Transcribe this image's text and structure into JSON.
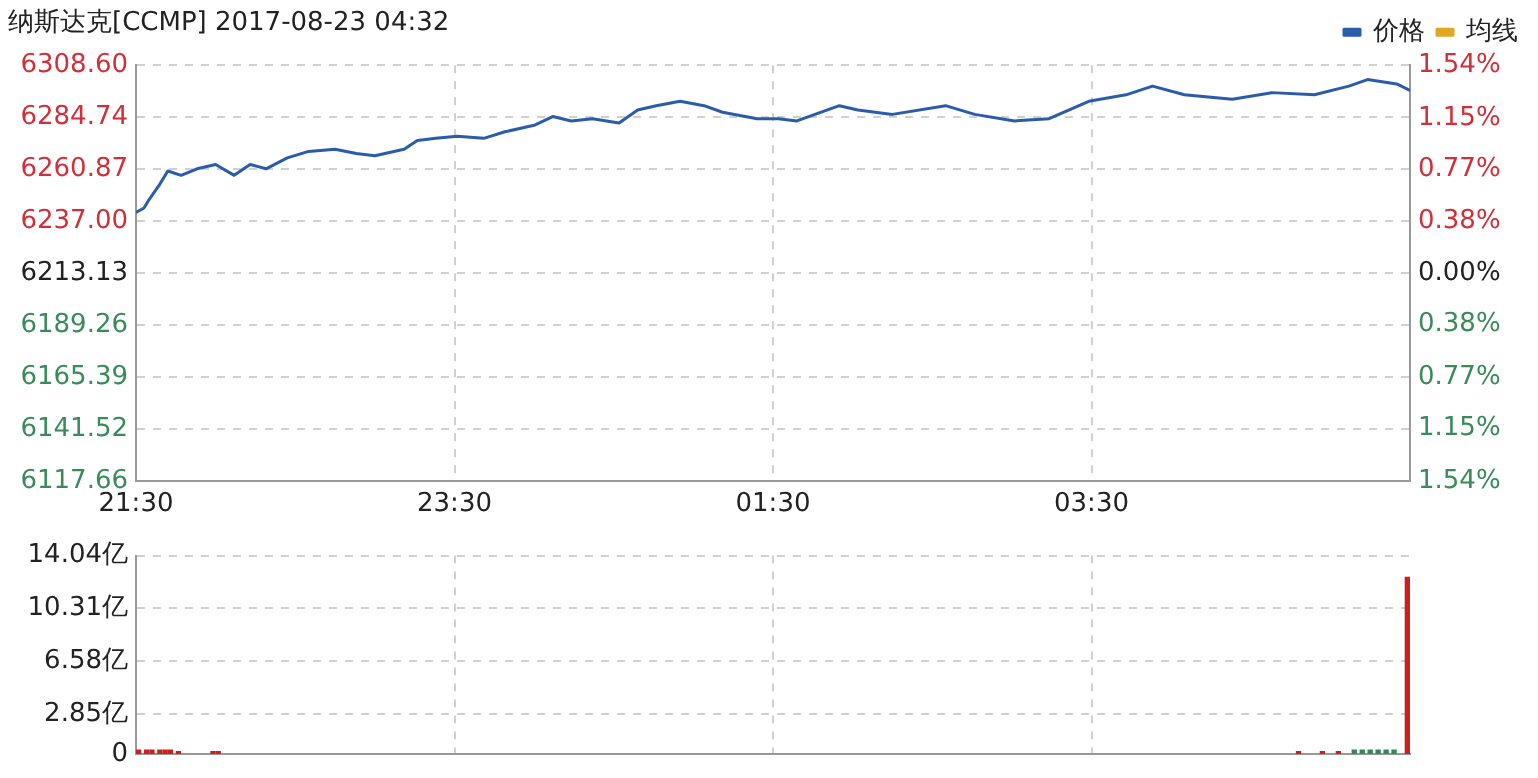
{
  "chart_data": [
    {
      "type": "line",
      "title": "纳斯达克[CCMP] 2017-08-23 04:32",
      "legend": "top right",
      "grid": true,
      "x": [
        "2017-08-22T21:30",
        "2017-08-22T21:33",
        "2017-08-22T21:35",
        "2017-08-22T21:39",
        "2017-08-22T21:42",
        "2017-08-22T21:47",
        "2017-08-22T21:53",
        "2017-08-22T22:00",
        "2017-08-22T22:07",
        "2017-08-22T22:13",
        "2017-08-22T22:19",
        "2017-08-22T22:27",
        "2017-08-22T22:35",
        "2017-08-22T22:45",
        "2017-08-22T22:53",
        "2017-08-22T23:00",
        "2017-08-22T23:11",
        "2017-08-22T23:16",
        "2017-08-22T23:23",
        "2017-08-22T23:31",
        "2017-08-22T23:41",
        "2017-08-22T23:49",
        "2017-08-23T00:00",
        "2017-08-23T00:07",
        "2017-08-23T00:14",
        "2017-08-23T00:22",
        "2017-08-23T00:32",
        "2017-08-23T00:39",
        "2017-08-23T00:46",
        "2017-08-23T00:55",
        "2017-08-23T01:04",
        "2017-08-23T01:11",
        "2017-08-23T01:24",
        "2017-08-23T01:32",
        "2017-08-23T01:39",
        "2017-08-23T01:55",
        "2017-08-23T02:02",
        "2017-08-23T02:15",
        "2017-08-23T02:35",
        "2017-08-23T02:46",
        "2017-08-23T03:01",
        "2017-08-23T03:14",
        "2017-08-23T03:29",
        "2017-08-23T03:43",
        "2017-08-23T03:53",
        "2017-08-23T04:05",
        "2017-08-23T04:23",
        "2017-08-23T04:38",
        "2017-08-23T04:54",
        "2017-08-23T05:07",
        "2017-08-23T05:14",
        "2017-08-23T05:25",
        "2017-08-23T05:30"
      ],
      "series": [
        {
          "name": "价格",
          "color": "#2a5caa",
          "values": [
            6241,
            6243,
            6247,
            6254,
            6260,
            6258,
            6261,
            6263,
            6258,
            6263,
            6261,
            6266,
            6269,
            6270,
            6268,
            6267,
            6270,
            6274,
            6275,
            6276,
            6275,
            6278,
            6281,
            6285,
            6283,
            6284,
            6282,
            6288,
            6290,
            6292,
            6290,
            6287,
            6284,
            6284,
            6283,
            6290,
            6288,
            6286,
            6290,
            6286,
            6283,
            6284,
            6292,
            6295,
            6299,
            6295,
            6293,
            6296,
            6295,
            6299,
            6302,
            6300,
            6297
          ]
        },
        {
          "name": "均线",
          "color": "#e0a820",
          "values": [
            null,
            null,
            null,
            null,
            null,
            null,
            null,
            null,
            null,
            null,
            null,
            null,
            null,
            null,
            null,
            null,
            null,
            null,
            null,
            null,
            null,
            null,
            null,
            null,
            null,
            null,
            null,
            null,
            null,
            null,
            null,
            null,
            null,
            null,
            null,
            null,
            null,
            null,
            null,
            null,
            null,
            null,
            null,
            null,
            null,
            null,
            null,
            null,
            null,
            null,
            null,
            null,
            null
          ]
        }
      ],
      "xlim": [
        "2017-08-22T21:30",
        "2017-08-23T05:30"
      ],
      "xticks": [
        {
          "value": "2017-08-22T21:30",
          "label": "21:30"
        },
        {
          "value": "2017-08-22T23:30",
          "label": "23:30"
        },
        {
          "value": "2017-08-23T01:30",
          "label": "01:30"
        },
        {
          "value": "2017-08-23T03:30",
          "label": "03:30"
        }
      ],
      "ylim": [
        6117.66,
        6308.6
      ],
      "yticks": [
        6117.66,
        6141.52,
        6165.39,
        6189.26,
        6213.13,
        {
          "value": 6237,
          "label": "6237.00"
        },
        6260.87,
        6284.74,
        {
          "value": 6308.6,
          "label": "6308.60"
        }
      ],
      "y2lim": [
        -1.54,
        1.54
      ],
      "y2ticks": [
        {
          "value": -1.54,
          "label": "1.54%"
        },
        {
          "value": -1.15,
          "label": "1.15%"
        },
        {
          "value": -0.77,
          "label": "0.77%"
        },
        {
          "value": -0.38,
          "label": "0.38%"
        },
        {
          "value": 0,
          "label": "0.00%"
        },
        {
          "value": 0.38,
          "label": "0.38%"
        },
        {
          "value": 0.77,
          "label": "0.77%"
        },
        {
          "value": 1.15,
          "label": "1.15%"
        },
        {
          "value": 1.54,
          "label": "1.54%"
        }
      ]
    },
    {
      "type": "bar",
      "grid": true,
      "tick_labels": "y",
      "x": [
        "2017-08-22T21:31",
        "2017-08-22T21:34",
        "2017-08-22T21:36",
        "2017-08-22T21:39",
        "2017-08-22T21:41",
        "2017-08-22T21:43",
        "2017-08-22T21:46",
        "2017-08-22T21:59",
        "2017-08-22T22:01",
        "2017-08-23T04:48",
        "2017-08-23T04:57",
        "2017-08-23T05:03",
        "2017-08-23T05:09",
        "2017-08-23T05:12",
        "2017-08-23T05:15",
        "2017-08-23T05:18",
        "2017-08-23T05:21",
        "2017-08-23T05:24",
        "2017-08-23T05:29"
      ],
      "values": [
        0.3,
        0.3,
        0.3,
        0.3,
        0.3,
        0.3,
        0.2,
        0.2,
        0.2,
        0.2,
        0.2,
        0.2,
        0.3,
        0.3,
        0.3,
        0.3,
        0.3,
        0.3,
        12.5
      ],
      "colors": [
        "#cc2020",
        "#cc2020",
        "#cc2020",
        "#cc2020",
        "#cc2020",
        "#cc2020",
        "#cc2020",
        "#cc2020",
        "#cc2020",
        "#cc2020",
        "#cc2020",
        "#cc2020",
        "#2e8b57",
        "#2e8b57",
        "#2e8b57",
        "#2e8b57",
        "#2e8b57",
        "#2e8b57",
        "#cc2020"
      ],
      "xlim": [
        "2017-08-22T21:30",
        "2017-08-23T05:30"
      ],
      "xticks": [
        {
          "value": "2017-08-22T21:30",
          "label": null
        },
        {
          "value": "2017-08-22T23:30",
          "label": null
        },
        {
          "value": "2017-08-23T01:30",
          "label": null
        },
        {
          "value": "2017-08-23T03:30",
          "label": null
        }
      ],
      "ylim": [
        0,
        14.04
      ],
      "yticks": [
        0,
        {
          "value": 2.85,
          "label": "2.85亿"
        },
        {
          "value": 6.58,
          "label": "6.58亿"
        },
        {
          "value": 10.31,
          "label": "10.31亿"
        },
        {
          "value": 14.04,
          "label": "14.04亿"
        }
      ]
    }
  ]
}
